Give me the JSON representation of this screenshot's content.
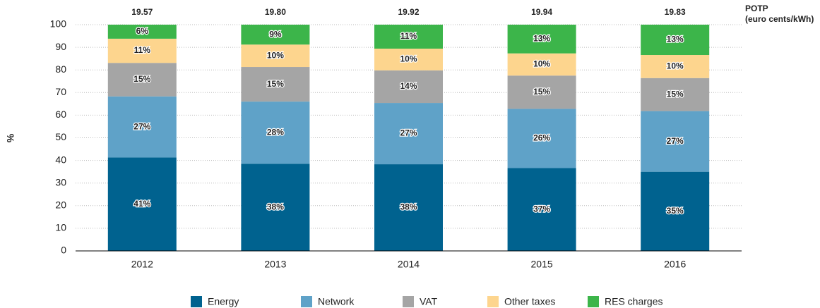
{
  "chart_data": {
    "type": "bar",
    "stacked": true,
    "y_label": "%",
    "categories": [
      "2012",
      "2013",
      "2014",
      "2015",
      "2016"
    ],
    "ylim": [
      0,
      100
    ],
    "yticks": [
      0,
      10,
      20,
      30,
      40,
      50,
      60,
      70,
      80,
      90,
      100
    ],
    "grid": true,
    "series": [
      {
        "name": "Energy",
        "color": "#00628f",
        "values": [
          41.3,
          38.5,
          38.3,
          36.6,
          35.0
        ],
        "value_labels": [
          "41%",
          "38%",
          "38%",
          "37%",
          "35%"
        ]
      },
      {
        "name": "Network",
        "color": "#5fa2c8",
        "values": [
          27.0,
          27.5,
          27.1,
          26.2,
          26.8
        ],
        "value_labels": [
          "27%",
          "28%",
          "27%",
          "26%",
          "27%"
        ]
      },
      {
        "name": "VAT",
        "color": "#a5a5a5",
        "values": [
          14.8,
          15.3,
          14.4,
          14.7,
          14.6
        ],
        "value_labels": [
          "15%",
          "15%",
          "14%",
          "15%",
          "15%"
        ]
      },
      {
        "name": "Other taxes",
        "color": "#fdd58e",
        "values": [
          10.7,
          9.9,
          9.6,
          9.8,
          10.2
        ],
        "value_labels": [
          "11%",
          "10%",
          "10%",
          "10%",
          "10%"
        ]
      },
      {
        "name": "RES charges",
        "color": "#3cb54a",
        "values": [
          6.2,
          8.8,
          10.6,
          12.7,
          13.4
        ],
        "value_labels": [
          "6%",
          "9%",
          "11%",
          "13%",
          "13%"
        ]
      }
    ],
    "totals": {
      "label": [
        "POTP",
        "(euro cents/kWh)"
      ],
      "values": [
        19.57,
        19.8,
        19.92,
        19.94,
        19.83
      ],
      "value_labels": [
        "19.57",
        "19.80",
        "19.92",
        "19.94",
        "19.83"
      ]
    }
  }
}
